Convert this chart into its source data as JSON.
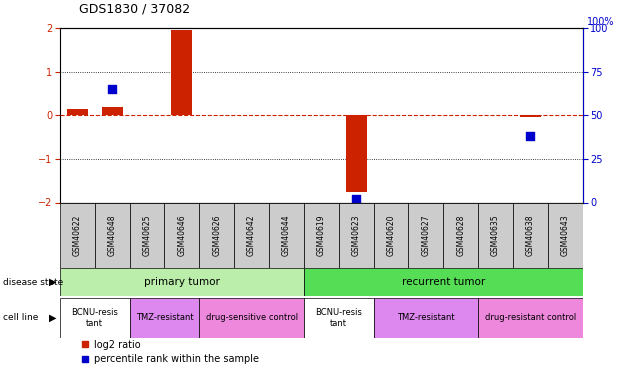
{
  "title": "GDS1830 / 37082",
  "samples": [
    "GSM40622",
    "GSM40648",
    "GSM40625",
    "GSM40646",
    "GSM40626",
    "GSM40642",
    "GSM40644",
    "GSM40619",
    "GSM40623",
    "GSM40620",
    "GSM40627",
    "GSM40628",
    "GSM40635",
    "GSM40638",
    "GSM40643"
  ],
  "log2_ratio": [
    0.15,
    0.18,
    0.0,
    1.95,
    0.0,
    0.0,
    0.0,
    0.0,
    -1.75,
    0.0,
    0.0,
    0.0,
    0.0,
    -0.04,
    0.0
  ],
  "percentile_rank": [
    null,
    65,
    null,
    null,
    null,
    null,
    null,
    null,
    2,
    null,
    null,
    null,
    null,
    38,
    null
  ],
  "ylim": [
    -2,
    2
  ],
  "y2lim": [
    0,
    100
  ],
  "yticks_left": [
    -2,
    -1,
    0,
    1,
    2
  ],
  "yticks_right": [
    0,
    25,
    50,
    75,
    100
  ],
  "bar_color": "#cc2200",
  "dot_color": "#0000cc",
  "zero_line_color": "#cc2200",
  "grid_color": "#000000",
  "disease_groups": [
    {
      "label": "primary tumor",
      "start": 0,
      "end": 7,
      "color": "#bbeeaa"
    },
    {
      "label": "recurrent tumor",
      "start": 7,
      "end": 15,
      "color": "#55dd55"
    }
  ],
  "cell_line_groups": [
    {
      "label": "BCNU-resis\ntant",
      "start": 0,
      "end": 2,
      "color": "#ffffff"
    },
    {
      "label": "TMZ-resistant",
      "start": 2,
      "end": 4,
      "color": "#dd88ee"
    },
    {
      "label": "drug-sensitive control",
      "start": 4,
      "end": 7,
      "color": "#ee88dd"
    },
    {
      "label": "BCNU-resis\ntant",
      "start": 7,
      "end": 9,
      "color": "#ffffff"
    },
    {
      "label": "TMZ-resistant",
      "start": 9,
      "end": 12,
      "color": "#dd88ee"
    },
    {
      "label": "drug-resistant control",
      "start": 12,
      "end": 15,
      "color": "#ee88dd"
    }
  ],
  "bar_width": 0.6,
  "dot_size": 30,
  "axis_label_color_left": "#cc2200",
  "axis_label_color_right": "#0000cc",
  "background_color": "#ffffff",
  "plot_bg_color": "#ffffff",
  "spine_color": "#000000",
  "sample_box_color": "#cccccc"
}
